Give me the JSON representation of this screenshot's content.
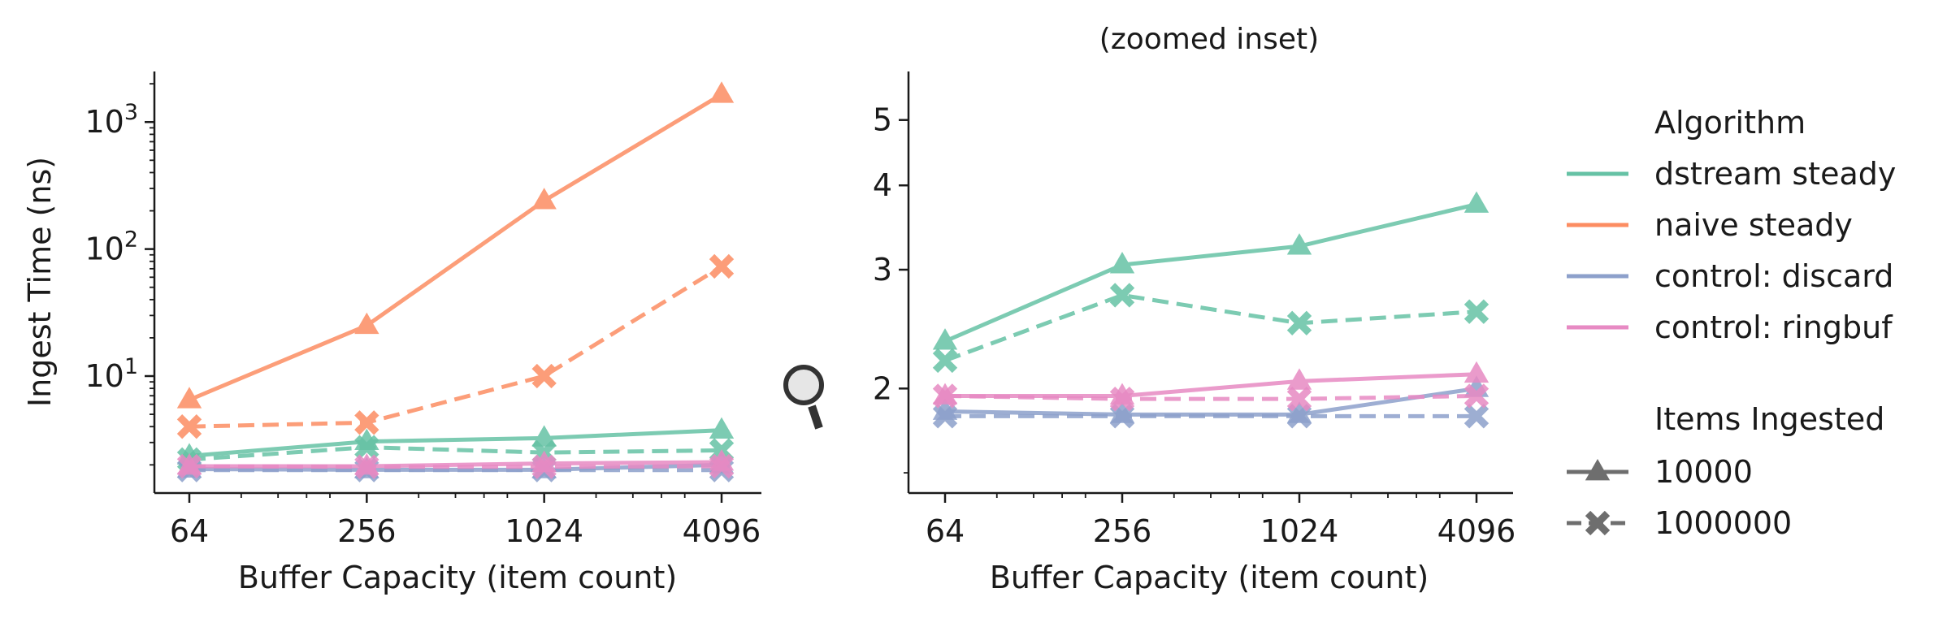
{
  "chart_data": [
    {
      "type": "line",
      "title": "",
      "xlabel": "Buffer Capacity (item count)",
      "ylabel": "Ingest Time (ns)",
      "x_scale": "log2",
      "y_scale": "log10",
      "x": [
        64,
        256,
        1024,
        4096
      ],
      "x_tick_labels": [
        "64",
        "256",
        "1024",
        "4096"
      ],
      "y_ticks": [
        {
          "value": 10,
          "base": "10",
          "exp": "1"
        },
        {
          "value": 100,
          "base": "10",
          "exp": "2"
        },
        {
          "value": 1000,
          "base": "10",
          "exp": "3"
        }
      ],
      "ylim": [
        1.2,
        2500
      ],
      "series": [
        {
          "algorithm": "dstream steady",
          "items": "10000",
          "color": "#66c2a5",
          "values": [
            2.35,
            3.05,
            3.25,
            3.75
          ]
        },
        {
          "algorithm": "dstream steady",
          "items": "1000000",
          "color": "#66c2a5",
          "values": [
            2.2,
            2.75,
            2.5,
            2.6
          ]
        },
        {
          "algorithm": "naive steady",
          "items": "10000",
          "color": "#fc8d62",
          "values": [
            6.5,
            25,
            240,
            1650
          ]
        },
        {
          "algorithm": "naive steady",
          "items": "1000000",
          "color": "#fc8d62",
          "values": [
            4.0,
            4.3,
            10,
            73
          ]
        },
        {
          "algorithm": "control: discard",
          "items": "10000",
          "color": "#8da0cb",
          "values": [
            1.85,
            1.83,
            1.83,
            2.0
          ]
        },
        {
          "algorithm": "control: discard",
          "items": "1000000",
          "color": "#8da0cb",
          "values": [
            1.82,
            1.82,
            1.82,
            1.82
          ]
        },
        {
          "algorithm": "control: ringbuf",
          "items": "10000",
          "color": "#e78ac3",
          "values": [
            1.95,
            1.95,
            2.05,
            2.1
          ]
        },
        {
          "algorithm": "control: ringbuf",
          "items": "1000000",
          "color": "#e78ac3",
          "values": [
            1.95,
            1.93,
            1.93,
            1.95
          ]
        }
      ]
    },
    {
      "type": "line",
      "title": "(zoomed inset)",
      "xlabel": "Buffer Capacity (item count)",
      "ylabel": "",
      "x_scale": "log2",
      "y_scale": "log",
      "x": [
        64,
        256,
        1024,
        4096
      ],
      "x_tick_labels": [
        "64",
        "256",
        "1024",
        "4096"
      ],
      "y_ticks": [
        {
          "value": 2,
          "label": "2"
        },
        {
          "value": 3,
          "label": "3"
        },
        {
          "value": 4,
          "label": "4"
        },
        {
          "value": 5,
          "label": "5"
        }
      ],
      "ylim": [
        1.4,
        5.9
      ],
      "series": [
        {
          "algorithm": "dstream steady",
          "items": "10000",
          "color": "#66c2a5",
          "values": [
            2.35,
            3.05,
            3.25,
            3.75
          ]
        },
        {
          "algorithm": "dstream steady",
          "items": "1000000",
          "color": "#66c2a5",
          "values": [
            2.2,
            2.75,
            2.5,
            2.6
          ]
        },
        {
          "algorithm": "control: discard",
          "items": "10000",
          "color": "#8da0cb",
          "values": [
            1.85,
            1.83,
            1.83,
            2.0
          ]
        },
        {
          "algorithm": "control: discard",
          "items": "1000000",
          "color": "#8da0cb",
          "values": [
            1.82,
            1.82,
            1.82,
            1.82
          ]
        },
        {
          "algorithm": "control: ringbuf",
          "items": "10000",
          "color": "#e78ac3",
          "values": [
            1.95,
            1.95,
            2.05,
            2.1
          ]
        },
        {
          "algorithm": "control: ringbuf",
          "items": "1000000",
          "color": "#e78ac3",
          "values": [
            1.95,
            1.93,
            1.93,
            1.95
          ]
        }
      ]
    }
  ],
  "legend": {
    "algorithm_title": "Algorithm",
    "algorithms": [
      {
        "label": "dstream steady",
        "color": "#66c2a5"
      },
      {
        "label": "naive steady",
        "color": "#fc8d62"
      },
      {
        "label": "control: discard",
        "color": "#8da0cb"
      },
      {
        "label": "control: ringbuf",
        "color": "#e78ac3"
      }
    ],
    "items_title": "Items Ingested",
    "items": [
      {
        "label": "10000",
        "marker": "triangle",
        "dash": "solid"
      },
      {
        "label": "1000000",
        "marker": "x",
        "dash": "dashed"
      }
    ],
    "legend_marker_color": "#6e6e6e",
    "zoom_icon": "magnifier-icon"
  }
}
